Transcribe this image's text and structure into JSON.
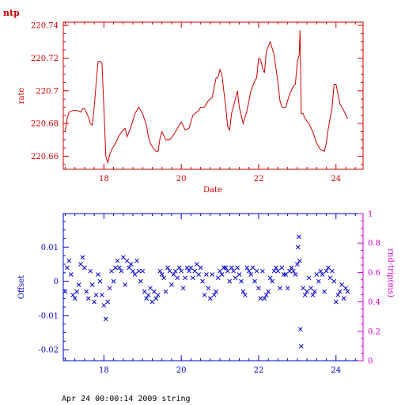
{
  "app_label": "ntp",
  "footer_text": "Apr 24 00:00:14 2009 string",
  "colors": {
    "top": "#cc0000",
    "bottom_left": "#0000cc",
    "bottom_right": "#cc00cc"
  },
  "chart_data": [
    {
      "type": "line",
      "xlabel": "Date",
      "ylabel": "rate",
      "xlim": [
        16.95,
        24.7
      ],
      "ylim": [
        220.652,
        220.742
      ],
      "xticks": [
        18,
        20,
        22,
        24
      ],
      "yticks": [
        220.66,
        220.68,
        220.7,
        220.72,
        220.74
      ],
      "ytick_labels": [
        "220.66",
        "220.68",
        "220.7",
        "220.72",
        "220.74"
      ],
      "series": [
        {
          "x": [
            17.0,
            17.05,
            17.1,
            17.2,
            17.3,
            17.4,
            17.45,
            17.5,
            17.6,
            17.65,
            17.7,
            17.75,
            17.8,
            17.85,
            17.9,
            17.95,
            18.0,
            18.05,
            18.1,
            18.15,
            18.2,
            18.3,
            18.4,
            18.5,
            18.55,
            18.6,
            18.7,
            18.8,
            18.9,
            19.0,
            19.1,
            19.15,
            19.2,
            19.3,
            19.35,
            19.4,
            19.45,
            19.5,
            19.6,
            19.7,
            19.8,
            19.9,
            19.95,
            20.0,
            20.1,
            20.2,
            20.3,
            20.4,
            20.45,
            20.5,
            20.6,
            20.7,
            20.8,
            20.9,
            20.95,
            21.0,
            21.05,
            21.1,
            21.15,
            21.2,
            21.25,
            21.3,
            21.4,
            21.45,
            21.5,
            21.6,
            21.7,
            21.8,
            21.9,
            21.95,
            22.0,
            22.05,
            22.1,
            22.15,
            22.2,
            22.3,
            22.4,
            22.5,
            22.55,
            22.6,
            22.7,
            22.8,
            22.9,
            22.95,
            23.0,
            23.05,
            23.07,
            23.09,
            23.1,
            23.15,
            23.2,
            23.3,
            23.4,
            23.5,
            23.6,
            23.7,
            23.75,
            23.8,
            23.9,
            23.95,
            24.0,
            24.1,
            24.2,
            24.3
          ],
          "y": [
            220.675,
            220.683,
            220.687,
            220.688,
            220.688,
            220.687,
            220.689,
            220.689,
            220.684,
            220.68,
            220.679,
            220.69,
            220.705,
            220.718,
            220.718,
            220.717,
            220.69,
            220.66,
            220.656,
            220.661,
            220.664,
            220.668,
            220.673,
            220.676,
            220.677,
            220.672,
            220.678,
            220.686,
            220.69,
            220.686,
            220.679,
            220.672,
            220.668,
            220.664,
            220.663,
            220.663,
            220.671,
            220.675,
            220.67,
            220.67,
            220.673,
            220.677,
            220.679,
            220.681,
            220.676,
            220.677,
            220.685,
            220.687,
            220.688,
            220.69,
            220.69,
            220.694,
            220.696,
            220.708,
            220.708,
            220.713,
            220.71,
            220.7,
            220.69,
            220.678,
            220.676,
            220.686,
            220.695,
            220.7,
            220.69,
            220.68,
            220.688,
            220.7,
            220.706,
            220.708,
            220.72,
            220.719,
            220.714,
            220.711,
            220.724,
            220.73,
            220.722,
            220.705,
            220.694,
            220.69,
            220.69,
            220.698,
            220.703,
            220.704,
            220.718,
            220.722,
            220.737,
            220.705,
            220.686,
            220.686,
            220.683,
            220.68,
            220.675,
            220.668,
            220.664,
            220.663,
            220.668,
            220.677,
            220.69,
            220.704,
            220.704,
            220.692,
            220.688,
            220.683
          ]
        }
      ]
    },
    {
      "type": "scatter",
      "ylabel": "Offset",
      "y2label": "rnd-trip(ms)",
      "xlim": [
        16.95,
        24.7
      ],
      "ylim": [
        -0.0232,
        0.0198
      ],
      "y2lim": [
        0,
        1
      ],
      "xticks": [
        18,
        20,
        22,
        24
      ],
      "yticks": [
        -0.02,
        -0.01,
        0,
        0.01
      ],
      "ytick_labels": [
        "-0.02",
        "-0.01",
        "0",
        "0.01"
      ],
      "y2ticks": [
        0,
        0.2,
        0.4,
        0.6,
        0.8,
        1
      ],
      "y2tick_labels": [
        "0",
        "0.2",
        "0.4",
        "0.6",
        "0.8",
        "1"
      ],
      "series": [
        {
          "marker": "x",
          "x": [
            17.0,
            17.05,
            17.1,
            17.15,
            17.2,
            17.25,
            17.3,
            17.35,
            17.4,
            17.45,
            17.5,
            17.55,
            17.6,
            17.65,
            17.7,
            17.75,
            17.8,
            17.85,
            17.9,
            17.95,
            18.0,
            18.05,
            18.1,
            18.15,
            18.2,
            18.25,
            18.3,
            18.35,
            18.4,
            18.45,
            18.5,
            18.55,
            18.6,
            18.65,
            18.7,
            18.75,
            18.8,
            18.85,
            18.9,
            18.95,
            19.0,
            19.05,
            19.1,
            19.15,
            19.2,
            19.25,
            19.3,
            19.35,
            19.4,
            19.45,
            19.5,
            19.55,
            19.6,
            19.65,
            19.7,
            19.75,
            19.8,
            19.85,
            19.9,
            19.95,
            20.0,
            20.05,
            20.1,
            20.15,
            20.2,
            20.25,
            20.3,
            20.35,
            20.4,
            20.45,
            20.5,
            20.55,
            20.6,
            20.65,
            20.7,
            20.75,
            20.8,
            20.85,
            20.9,
            20.95,
            21.0,
            21.05,
            21.1,
            21.15,
            21.2,
            21.25,
            21.3,
            21.35,
            21.4,
            21.45,
            21.5,
            21.55,
            21.6,
            21.65,
            21.7,
            21.75,
            21.8,
            21.85,
            21.9,
            21.95,
            22.0,
            22.05,
            22.1,
            22.15,
            22.2,
            22.25,
            22.3,
            22.35,
            22.4,
            22.45,
            22.5,
            22.55,
            22.6,
            22.65,
            22.7,
            22.75,
            22.8,
            22.85,
            22.9,
            22.95,
            23.0,
            23.02,
            23.04,
            23.06,
            23.08,
            23.1,
            23.15,
            23.2,
            23.25,
            23.3,
            23.35,
            23.4,
            23.45,
            23.5,
            23.55,
            23.6,
            23.65,
            23.7,
            23.75,
            23.8,
            23.85,
            23.9,
            23.95,
            24.0,
            24.05,
            24.1,
            24.15,
            24.2,
            24.25,
            24.3
          ],
          "y": [
            -0.003,
            0.004,
            0.006,
            0.002,
            -0.004,
            -0.005,
            -0.003,
            -0.001,
            0.005,
            0.007,
            0.004,
            -0.003,
            -0.005,
            0.003,
            -0.001,
            -0.006,
            -0.004,
            0.002,
            0.0,
            -0.004,
            -0.007,
            -0.011,
            -0.006,
            -0.002,
            0.003,
            0.0,
            0.004,
            0.006,
            0.004,
            0.003,
            0.007,
            -0.001,
            0.006,
            0.004,
            0.005,
            0.003,
            0.002,
            0.006,
            0.003,
            0.0,
            0.003,
            -0.003,
            -0.005,
            -0.004,
            -0.002,
            -0.006,
            -0.003,
            -0.005,
            -0.004,
            0.003,
            0.002,
            0.001,
            -0.003,
            0.004,
            0.003,
            -0.001,
            0.002,
            0.003,
            0.001,
            0.004,
            0.003,
            -0.002,
            0.001,
            0.004,
            0.003,
            0.004,
            0.001,
            0.003,
            0.005,
            0.002,
            0.004,
            0.0,
            -0.004,
            0.002,
            -0.002,
            -0.005,
            0.002,
            -0.004,
            -0.003,
            0.001,
            0.003,
            0.002,
            0.004,
            0.004,
            0.003,
            0.0,
            0.004,
            0.003,
            0.001,
            0.004,
            0.002,
            0.0,
            -0.003,
            -0.004,
            0.004,
            0.003,
            0.002,
            0.004,
            0.0,
            0.003,
            -0.002,
            -0.005,
            0.003,
            -0.005,
            -0.004,
            -0.003,
            0.001,
            0.0,
            0.003,
            0.004,
            0.003,
            -0.002,
            0.004,
            0.002,
            0.002,
            -0.002,
            0.003,
            0.004,
            0.003,
            0.002,
            0.005,
            0.01,
            0.013,
            0.006,
            -0.014,
            -0.019,
            -0.002,
            -0.004,
            -0.003,
            0.001,
            -0.002,
            -0.004,
            -0.003,
            0.002,
            0.0,
            0.003,
            0.002,
            -0.003,
            0.003,
            0.004,
            0.001,
            0.003,
            0.0,
            -0.006,
            -0.004,
            -0.003,
            -0.001,
            -0.005,
            -0.002,
            -0.003
          ]
        }
      ]
    }
  ]
}
